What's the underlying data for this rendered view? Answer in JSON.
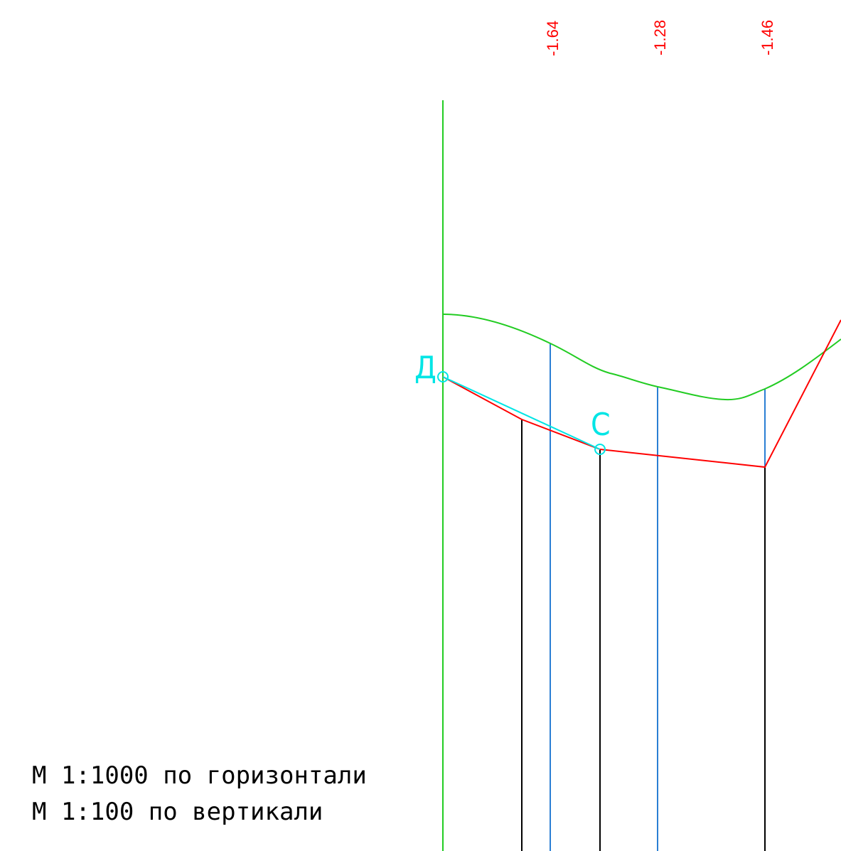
{
  "colors": {
    "background": "#ffffff",
    "ground_line": "#22cc22",
    "design_line": "#ff0000",
    "point_marker": "#00e5e5",
    "blue_verticals": "#2a7fd4",
    "black_verticals": "#000000",
    "elevation_labels": "#ff0000"
  },
  "elevation_labels": [
    "-1.64",
    "-1.28",
    "-1.46"
  ],
  "points": {
    "d": {
      "label": "Д"
    },
    "c": {
      "label": "С"
    }
  },
  "scale_notes": {
    "horizontal": "М 1:1000 по горизонтали",
    "vertical": "М 1:100 по вертикали"
  }
}
